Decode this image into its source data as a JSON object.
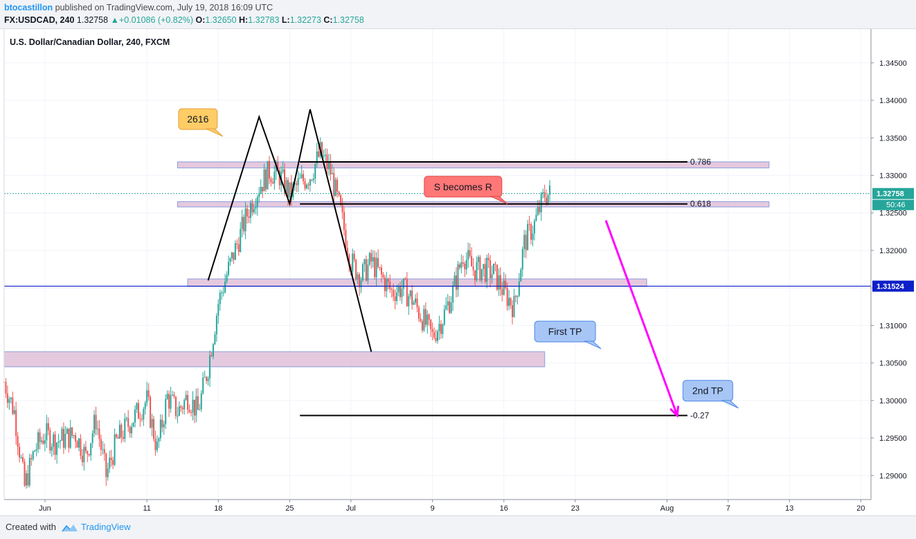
{
  "header": {
    "author": "btocastillon",
    "published_text": "published on TradingView.com, July 19, 2018 16:09 UTC",
    "symbol": "FX:USDCAD, 240",
    "last": "1.32758",
    "change": "+0.01086 (+0.82%)",
    "o_label": "O:",
    "o_value": "1.32650",
    "h_label": "H:",
    "h_value": "1.32783",
    "l_label": "L:",
    "l_value": "1.32273",
    "c_label": "C:",
    "c_value": "1.32758"
  },
  "footer": {
    "created_with": "Created with",
    "brand": "TradingView"
  },
  "colors": {
    "up": "#26a69a",
    "down": "#ef5350",
    "zone_fill": "#e0c0d8",
    "zone_stroke": "#9aa6dc",
    "blue_line": "#0d1fc8",
    "magenta": "#ff00ff",
    "last_price_bg": "#26a69a",
    "blue_price_bg": "#0d1fc8"
  },
  "chart_data": {
    "type": "candlestick",
    "title": "U.S. Dollar/Canadian Dollar, 240, FXCM",
    "y_ticks": [
      1.29,
      1.295,
      1.3,
      1.305,
      1.31,
      1.315,
      1.32,
      1.325,
      1.33,
      1.335,
      1.34,
      1.345
    ],
    "y_tick_labels": [
      "1.29000",
      "1.29500",
      "1.30000",
      "1.30500",
      "1.31000",
      "1.31500",
      "1.32000",
      "1.32500",
      "1.33000",
      "1.33500",
      "1.34000",
      "1.34500"
    ],
    "ylim": [
      1.2868,
      1.3495
    ],
    "x_range": [
      "2018-05-28",
      "2018-08-21"
    ],
    "x_ticks": [
      {
        "date": "2018-06-01",
        "label": "Jun"
      },
      {
        "date": "2018-06-11",
        "label": "11"
      },
      {
        "date": "2018-06-18",
        "label": "18"
      },
      {
        "date": "2018-06-25",
        "label": "25"
      },
      {
        "date": "2018-07-01",
        "label": "Jul"
      },
      {
        "date": "2018-07-09",
        "label": "9"
      },
      {
        "date": "2018-07-16",
        "label": "16"
      },
      {
        "date": "2018-07-23",
        "label": "23"
      },
      {
        "date": "2018-08-01",
        "label": "Aug"
      },
      {
        "date": "2018-08-07",
        "label": "7"
      },
      {
        "date": "2018-08-13",
        "label": "13"
      },
      {
        "date": "2018-08-20",
        "label": "20"
      }
    ],
    "price_path": [
      [
        "2018-05-28",
        1.3025
      ],
      [
        "2018-05-29",
        1.2985
      ],
      [
        "2018-05-30",
        1.2885
      ],
      [
        "2018-05-31",
        1.2935
      ],
      [
        "2018-06-01",
        1.2955
      ],
      [
        "2018-06-02",
        1.2945
      ],
      [
        "2018-06-04",
        1.2955
      ],
      [
        "2018-06-05",
        1.2925
      ],
      [
        "2018-06-06",
        1.2975
      ],
      [
        "2018-06-07",
        1.29
      ],
      [
        "2018-06-08",
        1.2945
      ],
      [
        "2018-06-09",
        1.2965
      ],
      [
        "2018-06-11",
        1.3
      ],
      [
        "2018-06-12",
        1.2935
      ],
      [
        "2018-06-13",
        1.3005
      ],
      [
        "2018-06-14",
        1.2985
      ],
      [
        "2018-06-15",
        1.3005
      ],
      [
        "2018-06-16",
        1.2985
      ],
      [
        "2018-06-17",
        1.3045
      ],
      [
        "2018-06-18",
        1.313
      ],
      [
        "2018-06-19",
        1.3175
      ],
      [
        "2018-06-20",
        1.3215
      ],
      [
        "2018-06-21",
        1.3255
      ],
      [
        "2018-06-22",
        1.3285
      ],
      [
        "2018-06-23",
        1.3305
      ],
      [
        "2018-06-24",
        1.33
      ],
      [
        "2018-06-25",
        1.3275
      ],
      [
        "2018-06-26",
        1.329
      ],
      [
        "2018-06-27",
        1.33
      ],
      [
        "2018-06-28",
        1.333
      ],
      [
        "2018-06-29",
        1.3305
      ],
      [
        "2018-06-30",
        1.325
      ],
      [
        "2018-07-01",
        1.3185
      ],
      [
        "2018-07-02",
        1.3165
      ],
      [
        "2018-07-03",
        1.3185
      ],
      [
        "2018-07-04",
        1.3165
      ],
      [
        "2018-07-05",
        1.3145
      ],
      [
        "2018-07-06",
        1.315
      ],
      [
        "2018-07-07",
        1.3135
      ],
      [
        "2018-07-08",
        1.311
      ],
      [
        "2018-07-09",
        1.3085
      ],
      [
        "2018-07-10",
        1.311
      ],
      [
        "2018-07-11",
        1.3145
      ],
      [
        "2018-07-12",
        1.3195
      ],
      [
        "2018-07-13",
        1.3175
      ],
      [
        "2018-07-14",
        1.3175
      ],
      [
        "2018-07-15",
        1.317
      ],
      [
        "2018-07-16",
        1.3145
      ],
      [
        "2018-07-17",
        1.3125
      ],
      [
        "2018-07-18",
        1.321
      ],
      [
        "2018-07-19",
        1.3235
      ],
      [
        "2018-07-20",
        1.3275
      ]
    ],
    "last_price": 1.32758,
    "last_price_label": "1.32758",
    "countdown_label": "50:46",
    "horizontal_line": 1.31524,
    "horizontal_line_label": "1.31524",
    "zones": [
      {
        "start": "2018-06-14",
        "end": "2018-08-11",
        "low": 1.331,
        "high": 1.3318
      },
      {
        "start": "2018-06-14",
        "end": "2018-08-11",
        "low": 1.3258,
        "high": 1.3265
      },
      {
        "start": "2018-06-15",
        "end": "2018-07-30",
        "low": 1.3152,
        "high": 1.3162
      },
      {
        "start": "2018-05-28",
        "end": "2018-07-20",
        "low": 1.3045,
        "high": 1.3065
      }
    ],
    "fib_levels": [
      {
        "label": "0.786",
        "price": 1.3318,
        "start": "2018-06-26",
        "end": "2018-08-03"
      },
      {
        "label": "0.618",
        "price": 1.3262,
        "start": "2018-06-26",
        "end": "2018-08-03"
      },
      {
        "label": "-0.27",
        "price": 1.298,
        "start": "2018-06-26",
        "end": "2018-08-03"
      }
    ],
    "pattern_line": [
      [
        "2018-06-17",
        1.316
      ],
      [
        "2018-06-22",
        1.3378
      ],
      [
        "2018-06-25",
        1.3262
      ],
      [
        "2018-06-27",
        1.3388
      ],
      [
        "2018-07-03",
        1.3065
      ]
    ],
    "projection_arrow": {
      "from": [
        "2018-07-26",
        1.324
      ],
      "to": [
        "2018-08-02",
        1.298
      ]
    },
    "annotations": [
      {
        "text": "2616",
        "style": "orange",
        "date": "2018-06-16",
        "price": 1.3375
      },
      {
        "text": "S becomes R",
        "style": "red",
        "date": "2018-07-12",
        "price": 1.3285
      },
      {
        "text": "First TP",
        "style": "blue",
        "date": "2018-07-22",
        "price": 1.3092
      },
      {
        "text": "2nd TP",
        "style": "blue",
        "date": "2018-08-05",
        "price": 1.3013
      }
    ]
  }
}
